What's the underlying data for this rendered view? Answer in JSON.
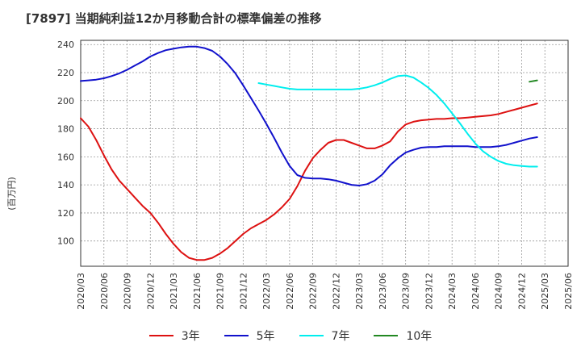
{
  "chart_data": {
    "type": "line",
    "title": "[7897]  当期純利益12か月移動合計の標準偏差の推移",
    "ylabel": "(百万円)",
    "xlabel": "",
    "ylim": [
      82,
      243
    ],
    "yticks": [
      100,
      120,
      140,
      160,
      180,
      200,
      220,
      240
    ],
    "xticks": [
      "2020/03",
      "2020/06",
      "2020/09",
      "2020/12",
      "2021/03",
      "2021/06",
      "2021/09",
      "2021/12",
      "2022/03",
      "2022/06",
      "2022/09",
      "2022/12",
      "2023/03",
      "2023/06",
      "2023/09",
      "2023/12",
      "2024/03",
      "2024/06",
      "2024/09",
      "2024/12",
      "2025/03",
      "2025/06"
    ],
    "grid": true,
    "legend_position": "bottom",
    "series": [
      {
        "name": "3年",
        "color": "#dd1111",
        "points": [
          [
            0,
            187.5
          ],
          [
            1,
            181.5
          ],
          [
            2,
            172
          ],
          [
            3,
            161
          ],
          [
            4,
            151
          ],
          [
            5,
            143
          ],
          [
            6,
            137
          ],
          [
            7,
            131
          ],
          [
            8,
            125
          ],
          [
            9,
            120
          ],
          [
            10,
            113
          ],
          [
            11,
            105
          ],
          [
            12,
            98
          ],
          [
            13,
            92
          ],
          [
            14,
            88
          ],
          [
            15,
            86.5
          ],
          [
            16,
            86.5
          ],
          [
            17,
            88
          ],
          [
            18,
            91
          ],
          [
            19,
            95
          ],
          [
            20,
            100
          ],
          [
            21,
            105
          ],
          [
            22,
            109
          ],
          [
            23,
            112
          ],
          [
            24,
            115
          ],
          [
            25,
            119
          ],
          [
            26,
            124
          ],
          [
            27,
            130
          ],
          [
            28,
            139
          ],
          [
            29,
            150
          ],
          [
            30,
            159
          ],
          [
            31,
            165
          ],
          [
            32,
            170
          ],
          [
            33,
            172
          ],
          [
            34,
            172
          ],
          [
            35,
            170
          ],
          [
            36,
            168
          ],
          [
            37,
            166
          ],
          [
            38,
            166
          ],
          [
            39,
            168
          ],
          [
            40,
            171
          ],
          [
            41,
            178
          ],
          [
            42,
            183
          ],
          [
            43,
            185
          ],
          [
            44,
            186
          ],
          [
            45,
            186.5
          ],
          [
            46,
            187
          ],
          [
            47,
            187
          ],
          [
            48,
            187.5
          ],
          [
            49,
            187.5
          ],
          [
            50,
            188
          ],
          [
            51,
            188.5
          ],
          [
            52,
            189
          ],
          [
            53,
            189.5
          ],
          [
            54,
            190.5
          ],
          [
            55,
            192
          ],
          [
            56,
            193.5
          ],
          [
            57,
            195
          ],
          [
            58,
            196.5
          ],
          [
            59,
            198
          ]
        ]
      },
      {
        "name": "5年",
        "color": "#1111cc",
        "points": [
          [
            0,
            214
          ],
          [
            1,
            214.5
          ],
          [
            2,
            215
          ],
          [
            3,
            216
          ],
          [
            4,
            217.5
          ],
          [
            5,
            219.5
          ],
          [
            6,
            222
          ],
          [
            7,
            225
          ],
          [
            8,
            228
          ],
          [
            9,
            231.5
          ],
          [
            10,
            234
          ],
          [
            11,
            236
          ],
          [
            12,
            237
          ],
          [
            13,
            238
          ],
          [
            14,
            238.5
          ],
          [
            15,
            238.5
          ],
          [
            16,
            237.5
          ],
          [
            17,
            235.5
          ],
          [
            18,
            231.5
          ],
          [
            19,
            226
          ],
          [
            20,
            219.5
          ],
          [
            21,
            211
          ],
          [
            22,
            202
          ],
          [
            23,
            193
          ],
          [
            24,
            183.5
          ],
          [
            25,
            173.5
          ],
          [
            26,
            163
          ],
          [
            27,
            153.5
          ],
          [
            28,
            147
          ],
          [
            29,
            145
          ],
          [
            30,
            144.5
          ],
          [
            31,
            144.5
          ],
          [
            32,
            144
          ],
          [
            33,
            143
          ],
          [
            34,
            141.5
          ],
          [
            35,
            140
          ],
          [
            36,
            139.5
          ],
          [
            37,
            140.5
          ],
          [
            38,
            143
          ],
          [
            39,
            147.5
          ],
          [
            40,
            154
          ],
          [
            41,
            159
          ],
          [
            42,
            163
          ],
          [
            43,
            165
          ],
          [
            44,
            166.5
          ],
          [
            45,
            167
          ],
          [
            46,
            167
          ],
          [
            47,
            167.5
          ],
          [
            48,
            167.5
          ],
          [
            49,
            167.5
          ],
          [
            50,
            167.5
          ],
          [
            51,
            167
          ],
          [
            52,
            167
          ],
          [
            53,
            167
          ],
          [
            54,
            167.5
          ],
          [
            55,
            168.5
          ],
          [
            56,
            170
          ],
          [
            57,
            171.5
          ],
          [
            58,
            173
          ],
          [
            59,
            174
          ]
        ]
      },
      {
        "name": "7年",
        "color": "#00eeee",
        "points": [
          [
            23,
            212.5
          ],
          [
            24,
            211.5
          ],
          [
            25,
            210.5
          ],
          [
            26,
            209.5
          ],
          [
            27,
            208.5
          ],
          [
            28,
            208
          ],
          [
            29,
            208
          ],
          [
            30,
            208
          ],
          [
            31,
            208
          ],
          [
            32,
            208
          ],
          [
            33,
            208
          ],
          [
            34,
            208
          ],
          [
            35,
            208
          ],
          [
            36,
            208.5
          ],
          [
            37,
            209.5
          ],
          [
            38,
            211
          ],
          [
            39,
            213
          ],
          [
            40,
            215.5
          ],
          [
            41,
            217.5
          ],
          [
            42,
            218
          ],
          [
            43,
            216.5
          ],
          [
            44,
            213
          ],
          [
            45,
            209
          ],
          [
            46,
            204
          ],
          [
            47,
            198
          ],
          [
            48,
            191
          ],
          [
            49,
            184
          ],
          [
            50,
            176.5
          ],
          [
            51,
            169.5
          ],
          [
            52,
            164
          ],
          [
            53,
            160
          ],
          [
            54,
            157
          ],
          [
            55,
            155
          ],
          [
            56,
            154
          ],
          [
            57,
            153.5
          ],
          [
            58,
            153
          ],
          [
            59,
            153
          ]
        ]
      },
      {
        "name": "10年",
        "color": "#228822",
        "points": [
          [
            58,
            213.5
          ],
          [
            59,
            214.5
          ]
        ]
      }
    ]
  }
}
